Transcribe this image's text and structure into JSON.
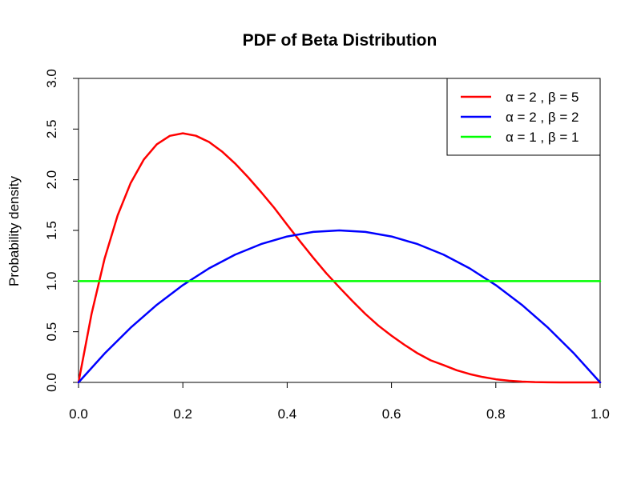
{
  "chart_data": {
    "type": "line",
    "title": "PDF of Beta Distribution",
    "xlabel": "",
    "ylabel": "Probability density",
    "xlim": [
      0,
      1
    ],
    "ylim": [
      0,
      3
    ],
    "x_ticks": [
      "0.0",
      "0.2",
      "0.4",
      "0.6",
      "0.8",
      "1.0"
    ],
    "y_ticks": [
      "0.0",
      "0.5",
      "1.0",
      "1.5",
      "2.0",
      "2.5",
      "3.0"
    ],
    "grid": false,
    "legend_position": "top-right",
    "series": [
      {
        "name": "α = 2 ,  β = 5",
        "color": "#ff0000",
        "x": [
          0.0,
          0.025,
          0.05,
          0.075,
          0.1,
          0.125,
          0.15,
          0.175,
          0.2,
          0.225,
          0.25,
          0.275,
          0.3,
          0.325,
          0.35,
          0.375,
          0.4,
          0.425,
          0.45,
          0.475,
          0.5,
          0.525,
          0.55,
          0.575,
          0.6,
          0.625,
          0.65,
          0.675,
          0.7,
          0.725,
          0.75,
          0.775,
          0.8,
          0.825,
          0.85,
          0.875,
          0.9,
          0.925,
          0.95,
          0.975,
          1.0
        ],
        "values": [
          0.0,
          0.677,
          1.222,
          1.648,
          1.968,
          2.198,
          2.349,
          2.433,
          2.458,
          2.434,
          2.373,
          2.279,
          2.161,
          2.025,
          1.878,
          1.724,
          1.555,
          1.39,
          1.23,
          1.077,
          0.938,
          0.803,
          0.675,
          0.56,
          0.461,
          0.37,
          0.287,
          0.218,
          0.17,
          0.12,
          0.082,
          0.053,
          0.031,
          0.017,
          0.008,
          0.003,
          0.001,
          0.0,
          0.0,
          0.0,
          0.0
        ]
      },
      {
        "name": "α = 2 ,  β = 2",
        "color": "#0000ff",
        "x": [
          0.0,
          0.05,
          0.1,
          0.15,
          0.2,
          0.25,
          0.3,
          0.35,
          0.4,
          0.45,
          0.5,
          0.55,
          0.6,
          0.65,
          0.7,
          0.75,
          0.8,
          0.85,
          0.9,
          0.95,
          1.0
        ],
        "values": [
          0.0,
          0.285,
          0.54,
          0.765,
          0.96,
          1.125,
          1.26,
          1.365,
          1.44,
          1.485,
          1.5,
          1.485,
          1.44,
          1.365,
          1.26,
          1.125,
          0.96,
          0.765,
          0.54,
          0.285,
          0.0
        ]
      },
      {
        "name": "α = 1 ,  β = 1",
        "color": "#00ff00",
        "x": [
          0.0,
          1.0
        ],
        "values": [
          1.0,
          1.0
        ]
      }
    ]
  }
}
